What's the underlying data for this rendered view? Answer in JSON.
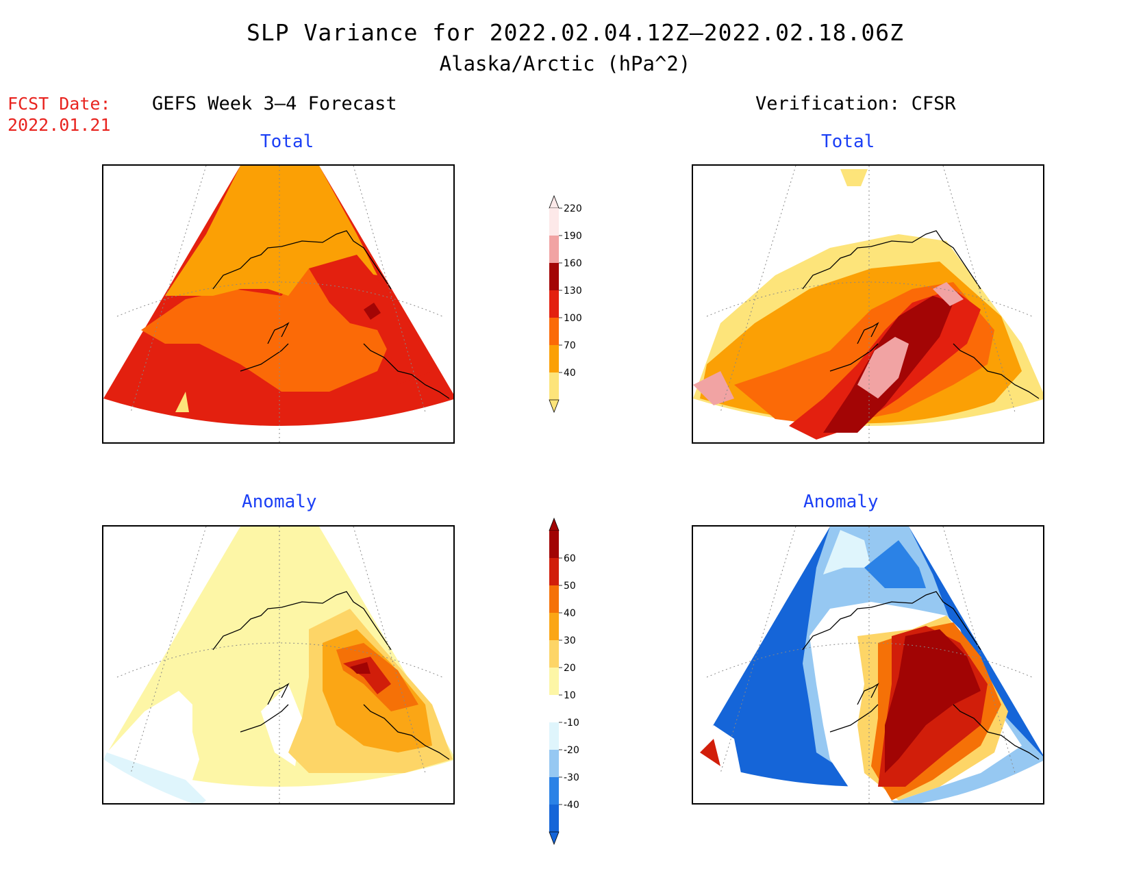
{
  "title": {
    "line1": "SLP Variance for 2022.02.04.12Z–2022.02.18.06Z",
    "line2": "Alaska/Arctic (hPa^2)"
  },
  "forecast_date": {
    "label": "FCST Date:",
    "value": "2022.01.21"
  },
  "columns": {
    "left": "GEFS Week 3–4 Forecast",
    "right": "Verification: CFSR"
  },
  "panels": {
    "top_left_title": "Total",
    "top_right_title": "Total",
    "bottom_left_title": "Anomaly",
    "bottom_right_title": "Anomaly"
  },
  "colorbars": {
    "total": {
      "labels": [
        "40",
        "70",
        "100",
        "130",
        "160",
        "190",
        "220"
      ],
      "colors": [
        "#fde47a",
        "#fba005",
        "#fb6a07",
        "#e3200f",
        "#a30505",
        "#f1a3a3",
        "#fde9e9"
      ]
    },
    "anomaly": {
      "labels": [
        "-40",
        "-30",
        "-20",
        "-10",
        "10",
        "20",
        "30",
        "40",
        "50",
        "60"
      ],
      "colors": [
        "#1565d8",
        "#2b82e6",
        "#96c8f2",
        "#dff5fc",
        "#ffffff",
        "#fdf6a6",
        "#fdd567",
        "#fba615",
        "#f57107",
        "#d11e0a",
        "#a10404"
      ]
    }
  }
}
